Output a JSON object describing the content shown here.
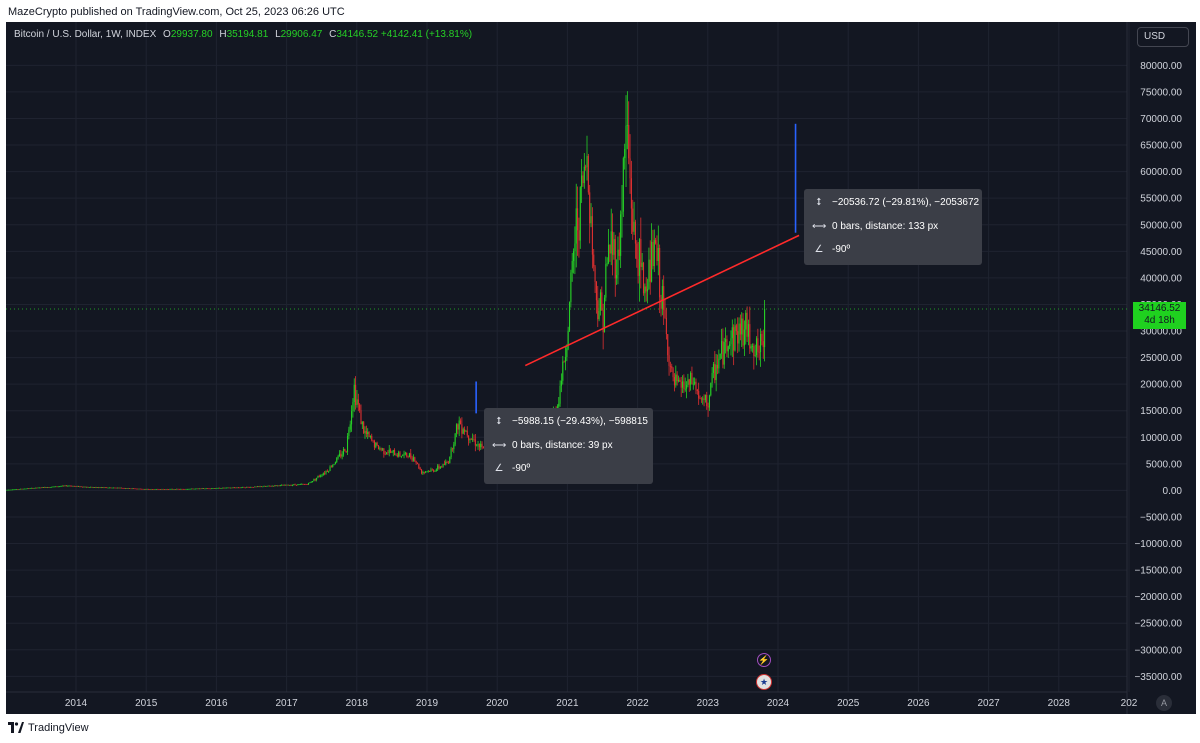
{
  "header": {
    "publisher_text": "MazeCrypto published on TradingView.com, Oct 25, 2023 06:26 UTC"
  },
  "symbol_bar": {
    "title": "Bitcoin / U.S. Dollar, 1W, INDEX",
    "open_label": "O",
    "open": "29937.80",
    "high_label": "H",
    "high": "35194.81",
    "low_label": "L",
    "low": "29906.47",
    "close_label": "C",
    "close": "34146.52",
    "change": "+4142.41 (+13.81%)"
  },
  "currency_button": "USD",
  "price_tag": {
    "price": "34146.52",
    "countdown": "4d 18h"
  },
  "measure_1": {
    "price_range": "−20536.72 (−29.81%), −2053672",
    "bars_distance": "0 bars, distance: 133 px",
    "angle": "-90º"
  },
  "measure_2": {
    "price_range": "−5988.15 (−29.43%), −598815",
    "bars_distance": "0 bars, distance: 39 px",
    "angle": "-90º"
  },
  "auto_button": "A",
  "footer": {
    "brand": "TradingView"
  },
  "colors": {
    "background": "#131722",
    "grid": "#1f2330",
    "up": "#26d026",
    "down": "#e03030",
    "trendline": "#ff2a2a",
    "measure": "#2962ff",
    "axis_text": "#d1d4dc",
    "price_tag": "#1fd11f"
  },
  "icons": [
    "price-range-icon",
    "bars-range-icon",
    "angle-icon",
    "lightning-icon",
    "us-flag-icon",
    "tradingview-logo-icon"
  ],
  "chart_data": {
    "type": "candlestick",
    "title": "Bitcoin / U.S. Dollar, 1W, INDEX",
    "x_axis": {
      "type": "time",
      "tick_labels": [
        "2014",
        "2015",
        "2016",
        "2017",
        "2018",
        "2019",
        "2020",
        "2021",
        "2022",
        "2023",
        "2024",
        "2025",
        "2026",
        "2027",
        "2028",
        "202"
      ]
    },
    "y_axis": {
      "range": [
        -38000,
        83000
      ],
      "tick_values": [
        80000,
        75000,
        70000,
        65000,
        60000,
        55000,
        50000,
        45000,
        40000,
        35000,
        30000,
        25000,
        20000,
        15000,
        10000,
        5000,
        0,
        -5000,
        -10000,
        -15000,
        -20000,
        -25000,
        -30000,
        -35000
      ],
      "tick_labels": [
        "80000.00",
        "75000.00",
        "70000.00",
        "65000.00",
        "60000.00",
        "55000.00",
        "50000.00",
        "45000.00",
        "40000.00",
        "35000.00",
        "30000.00",
        "25000.00",
        "20000.00",
        "15000.00",
        "10000.00",
        "5000.00",
        "0.00",
        "−5000.00",
        "−10000.00",
        "−15000.00",
        "−20000.00",
        "−25000.00",
        "−30000.00",
        "−35000.00"
      ]
    },
    "grid": true,
    "price_path": [
      [
        2013.0,
        100
      ],
      [
        2013.9,
        900
      ],
      [
        2014.2,
        600
      ],
      [
        2014.6,
        500
      ],
      [
        2015.0,
        250
      ],
      [
        2015.5,
        260
      ],
      [
        2016.0,
        430
      ],
      [
        2016.5,
        650
      ],
      [
        2017.0,
        1000
      ],
      [
        2017.3,
        1200
      ],
      [
        2017.6,
        4000
      ],
      [
        2017.85,
        8000
      ],
      [
        2017.96,
        19500
      ],
      [
        2018.1,
        11000
      ],
      [
        2018.3,
        8000
      ],
      [
        2018.5,
        7000
      ],
      [
        2018.8,
        6400
      ],
      [
        2018.92,
        3500
      ],
      [
        2019.1,
        3800
      ],
      [
        2019.3,
        5300
      ],
      [
        2019.45,
        13000
      ],
      [
        2019.6,
        10500
      ],
      [
        2019.8,
        7500
      ],
      [
        2020.0,
        8000
      ],
      [
        2020.2,
        6500
      ],
      [
        2020.3,
        7000
      ],
      [
        2020.5,
        9200
      ],
      [
        2020.7,
        11000
      ],
      [
        2020.85,
        15500
      ],
      [
        2021.0,
        29000
      ],
      [
        2021.1,
        47000
      ],
      [
        2021.28,
        63000
      ],
      [
        2021.4,
        37000
      ],
      [
        2021.5,
        33000
      ],
      [
        2021.6,
        47000
      ],
      [
        2021.72,
        43000
      ],
      [
        2021.84,
        69000
      ],
      [
        2021.95,
        47000
      ],
      [
        2022.1,
        38000
      ],
      [
        2022.25,
        46000
      ],
      [
        2022.4,
        30000
      ],
      [
        2022.5,
        20000
      ],
      [
        2022.7,
        19500
      ],
      [
        2022.8,
        20500
      ],
      [
        2022.9,
        16500
      ],
      [
        2023.0,
        16500
      ],
      [
        2023.1,
        23000
      ],
      [
        2023.3,
        28500
      ],
      [
        2023.5,
        30500
      ],
      [
        2023.6,
        29200
      ],
      [
        2023.7,
        26000
      ],
      [
        2023.78,
        27000
      ],
      [
        2023.81,
        34146.52
      ]
    ],
    "drawings": {
      "trendline": [
        [
          2020.4,
          23500
        ],
        [
          2024.3,
          48000
        ]
      ],
      "measure_1": {
        "x": 2024.25,
        "from": 69000,
        "to": 48500
      },
      "measure_2": {
        "x": 2019.7,
        "from": 20500,
        "to": 14500
      }
    },
    "last_price": 34146.52
  }
}
